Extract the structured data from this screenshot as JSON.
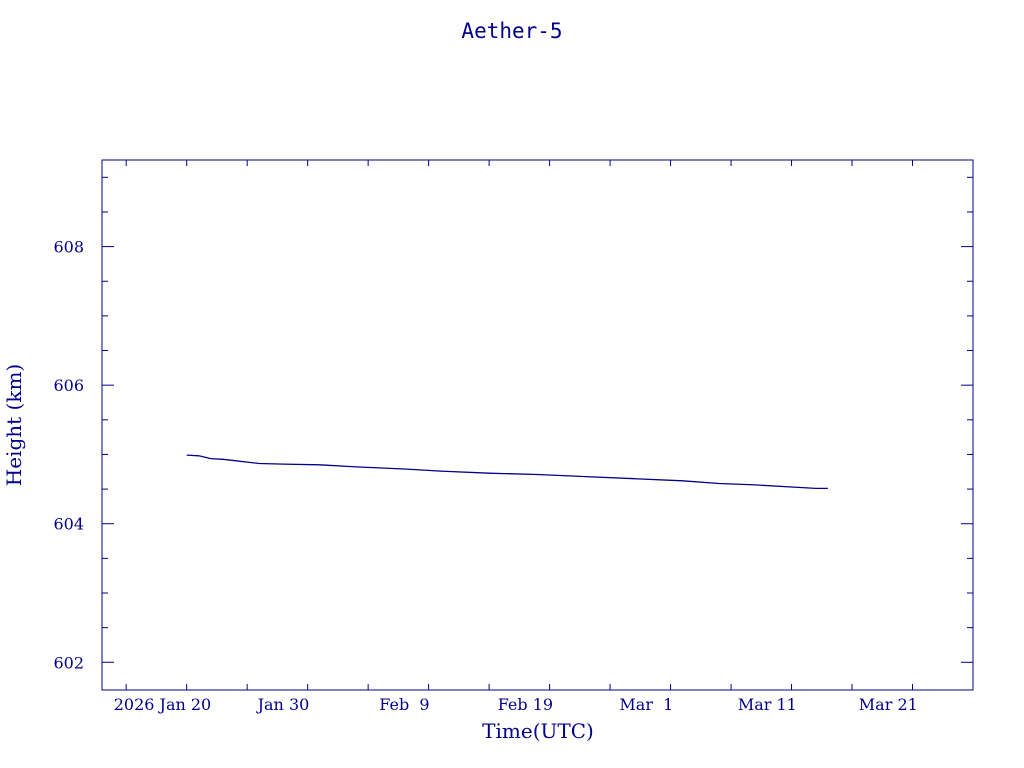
{
  "chart_data": {
    "type": "line",
    "title": "Aether-5",
    "xlabel": "Time(UTC)",
    "ylabel": "Height (km)",
    "color": "#00008b",
    "grid": false,
    "x_tick_labels": [
      "2026 Jan 20",
      "Jan 30",
      "Feb  9",
      "Feb 19",
      "Mar  1",
      "Mar 11",
      "Mar 21"
    ],
    "x_ticks": [
      "2026-01-20",
      "2026-01-30",
      "2026-02-09",
      "2026-02-19",
      "2026-03-01",
      "2026-03-11",
      "2026-03-21"
    ],
    "xlim": [
      "2026-01-15",
      "2026-03-28"
    ],
    "y_ticks": [
      602,
      604,
      606,
      608
    ],
    "y_tick_labels": [
      "602",
      "604",
      "606",
      "608"
    ],
    "ylim": [
      601.6,
      609.25
    ],
    "series": [
      {
        "x": [
          "2026-01-22",
          "2026-01-23",
          "2026-01-24",
          "2026-01-25",
          "2026-01-26",
          "2026-01-27",
          "2026-01-28",
          "2026-01-30",
          "2026-02-02",
          "2026-02-05",
          "2026-02-09",
          "2026-02-12",
          "2026-02-16",
          "2026-02-20",
          "2026-02-24",
          "2026-02-28",
          "2026-03-04",
          "2026-03-07",
          "2026-03-10",
          "2026-03-13",
          "2026-03-15",
          "2026-03-16"
        ],
        "y": [
          604.99,
          604.98,
          604.94,
          604.93,
          604.91,
          604.89,
          604.87,
          604.86,
          604.85,
          604.82,
          604.79,
          604.76,
          604.73,
          604.71,
          604.68,
          604.65,
          604.62,
          604.58,
          604.56,
          604.53,
          604.51,
          604.51
        ]
      }
    ]
  }
}
